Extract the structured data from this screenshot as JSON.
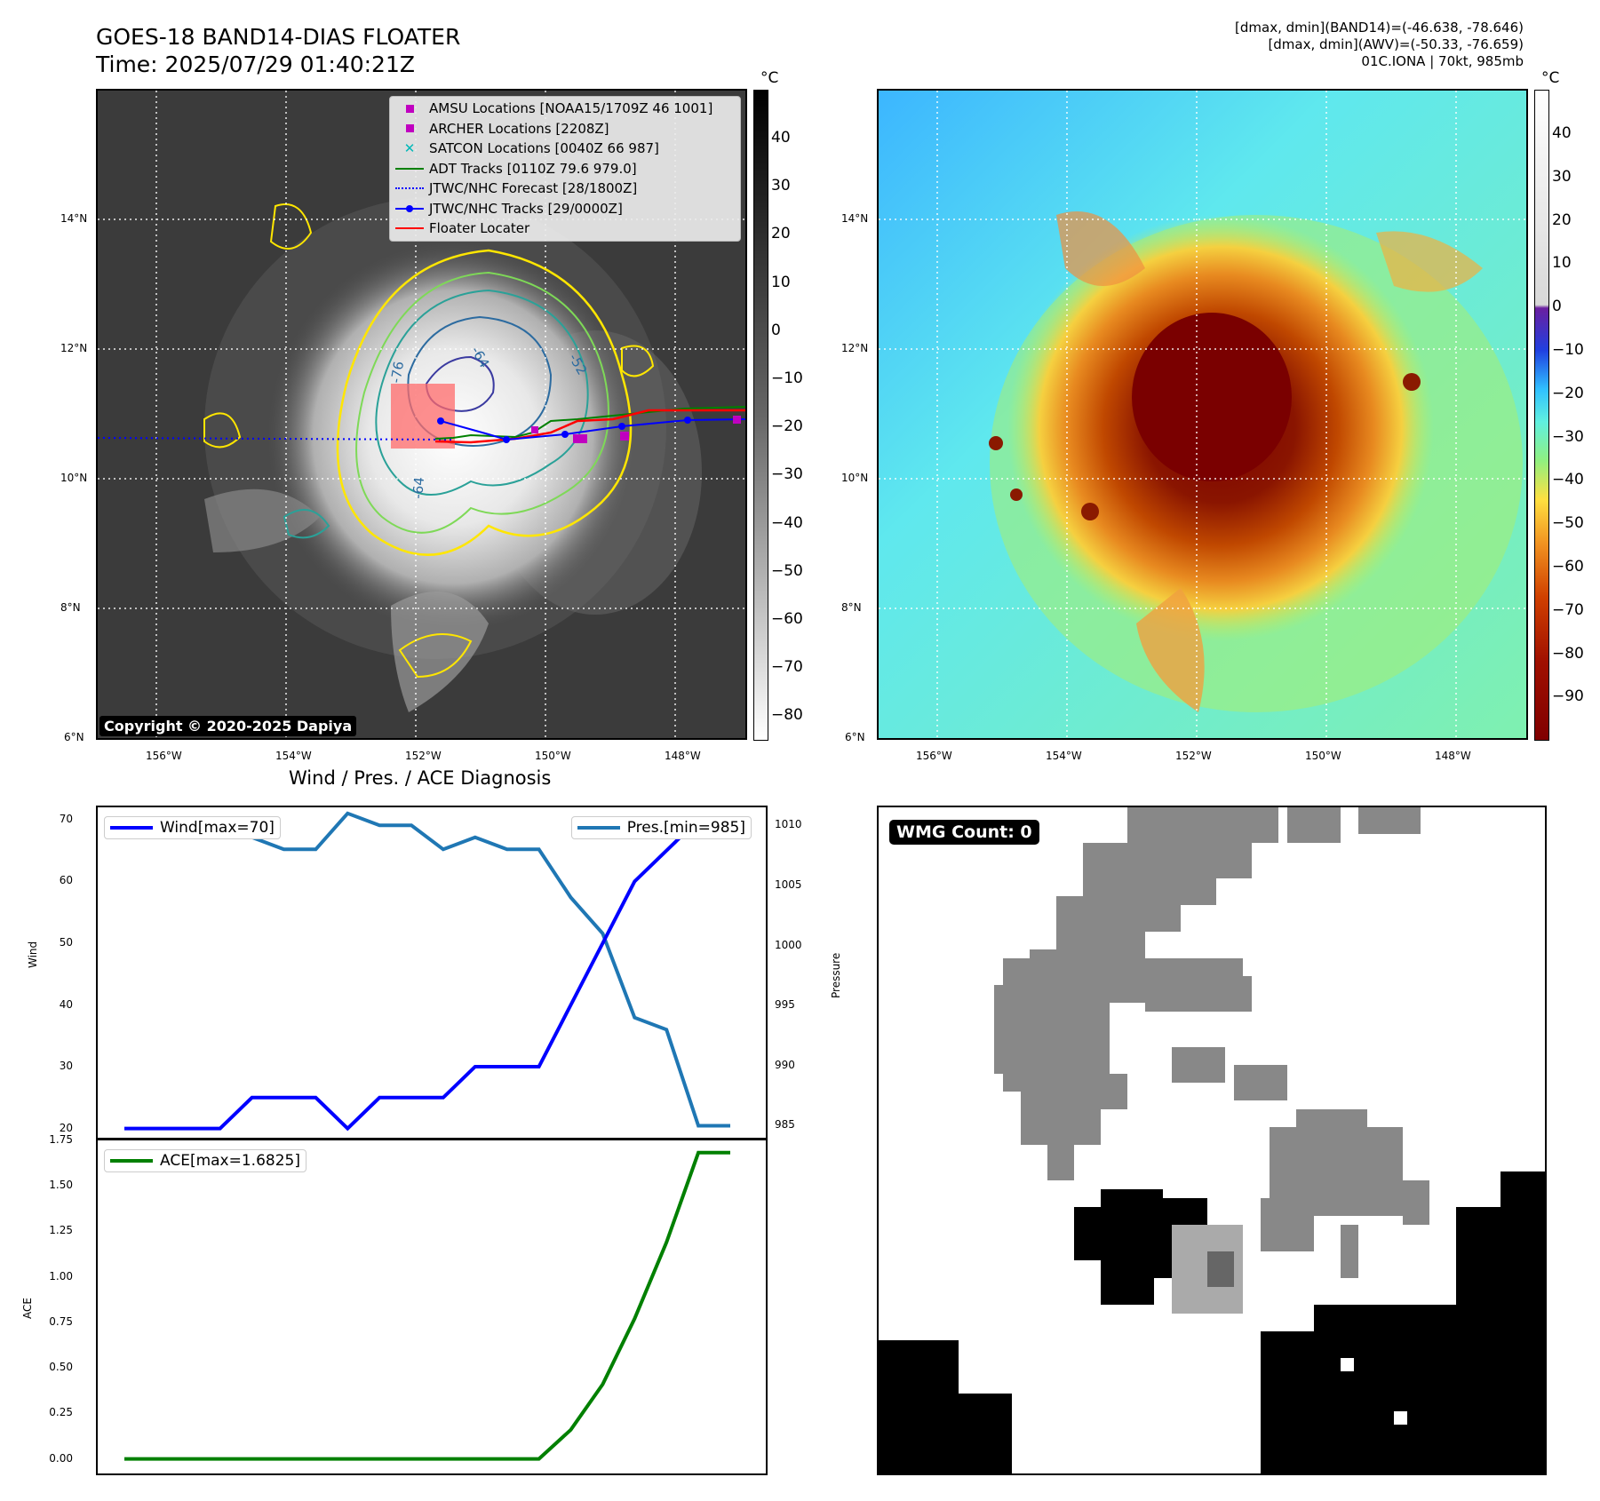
{
  "header": {
    "title_line1": "GOES-18 BAND14-DIAS FLOATER",
    "title_line2": "Time: 2025/07/29 01:40:21Z",
    "info_line1": "[dmax, dmin](BAND14)=(-46.638, -78.646)",
    "info_line2": "[dmax, dmin](AWV)=(-50.33, -76.659)",
    "info_line3": "01C.IONA | 70kt, 985mb"
  },
  "map": {
    "lon_labels": [
      "156°W",
      "154°W",
      "152°W",
      "150°W",
      "148°W"
    ],
    "lat_labels": [
      "14°N",
      "12°N",
      "10°N",
      "8°N",
      "6°N"
    ],
    "copyright": "Copyright © 2020-2025 Dapiya",
    "contour_labels": [
      "-64",
      "-76",
      "-64",
      "-52"
    ]
  },
  "legend": {
    "items": [
      {
        "label": "AMSU Locations [NOAA15/1709Z 46 1001]",
        "color": "#c000c0",
        "symbol": "square-marker"
      },
      {
        "label": "ARCHER Locations [2208Z]",
        "color": "#c000c0",
        "symbol": "square-marker"
      },
      {
        "label": "SATCON Locations [0040Z 66 987]",
        "color": "#00b8b8",
        "symbol": "x-marker"
      },
      {
        "label": "ADT Tracks [0110Z 79.6 979.0]",
        "color": "#008000",
        "symbol": "solid-line"
      },
      {
        "label": "JTWC/NHC Forecast [28/1800Z]",
        "color": "#0000ff",
        "symbol": "dotted-line"
      },
      {
        "label": "JTWC/NHC Tracks [29/0000Z]",
        "color": "#0000ff",
        "symbol": "line-dot"
      },
      {
        "label": "Floater Locater",
        "color": "#ff0000",
        "symbol": "solid-line"
      }
    ]
  },
  "colorbar_left": {
    "unit": "°C",
    "ticks": [
      "40",
      "30",
      "20",
      "10",
      "0",
      "−10",
      "−20",
      "−30",
      "−40",
      "−50",
      "−60",
      "−70",
      "−80"
    ]
  },
  "colorbar_right": {
    "unit": "°C",
    "ticks": [
      "40",
      "30",
      "20",
      "10",
      "0",
      "−10",
      "−20",
      "−30",
      "−40",
      "−50",
      "−60",
      "−70",
      "−80",
      "−90"
    ]
  },
  "wmg": {
    "label": "WMG Count: 0"
  },
  "diagnosis": {
    "title": "Wind / Pres. / ACE Diagnosis",
    "wind_ylabel": "Wind",
    "pres_ylabel": "Pressure",
    "ace_ylabel": "ACE",
    "wind_ticks": [
      "70",
      "60",
      "50",
      "40",
      "30",
      "20"
    ],
    "pres_ticks": [
      "1010",
      "1005",
      "1000",
      "995",
      "990",
      "985"
    ],
    "ace_ticks": [
      "1.75",
      "1.50",
      "1.25",
      "1.00",
      "0.75",
      "0.50",
      "0.25",
      "0.00"
    ],
    "wind_legend": "Wind[max=70]",
    "pres_legend": "Pres.[min=985]",
    "ace_legend": "ACE[max=1.6825]",
    "wind_color": "#0000ff",
    "pres_color": "#1f77b4",
    "ace_color": "#008000"
  },
  "chart_data": {
    "type": "line",
    "title": "Wind / Pres. / ACE Diagnosis",
    "x": [
      0,
      1,
      2,
      3,
      4,
      5,
      6,
      7,
      8,
      9,
      10,
      11,
      12,
      13,
      14,
      15,
      16,
      17,
      18,
      19
    ],
    "series": [
      {
        "name": "Wind[max=70]",
        "axis": "wind",
        "values": [
          20,
          20,
          20,
          20,
          25,
          25,
          25,
          20,
          25,
          25,
          25,
          30,
          30,
          30,
          40,
          50,
          60,
          65,
          70,
          70
        ]
      },
      {
        "name": "Pres.[min=985]",
        "axis": "pressure",
        "values": [
          1010,
          1010,
          1010,
          1009,
          1009,
          1008,
          1008,
          1011,
          1010,
          1010,
          1008,
          1009,
          1008,
          1008,
          1004,
          1001,
          994,
          993,
          985,
          985
        ]
      },
      {
        "name": "ACE[max=1.6825]",
        "axis": "ace",
        "values": [
          0,
          0,
          0,
          0,
          0,
          0,
          0,
          0,
          0,
          0,
          0,
          0,
          0,
          0,
          0.16,
          0.41,
          0.77,
          1.19,
          1.6825,
          1.6825
        ]
      }
    ],
    "wind_ylim": [
      18.5,
      72
    ],
    "pressure_ylim": [
      984,
      1011.5
    ],
    "ace_ylim": [
      -0.08,
      1.75
    ]
  }
}
